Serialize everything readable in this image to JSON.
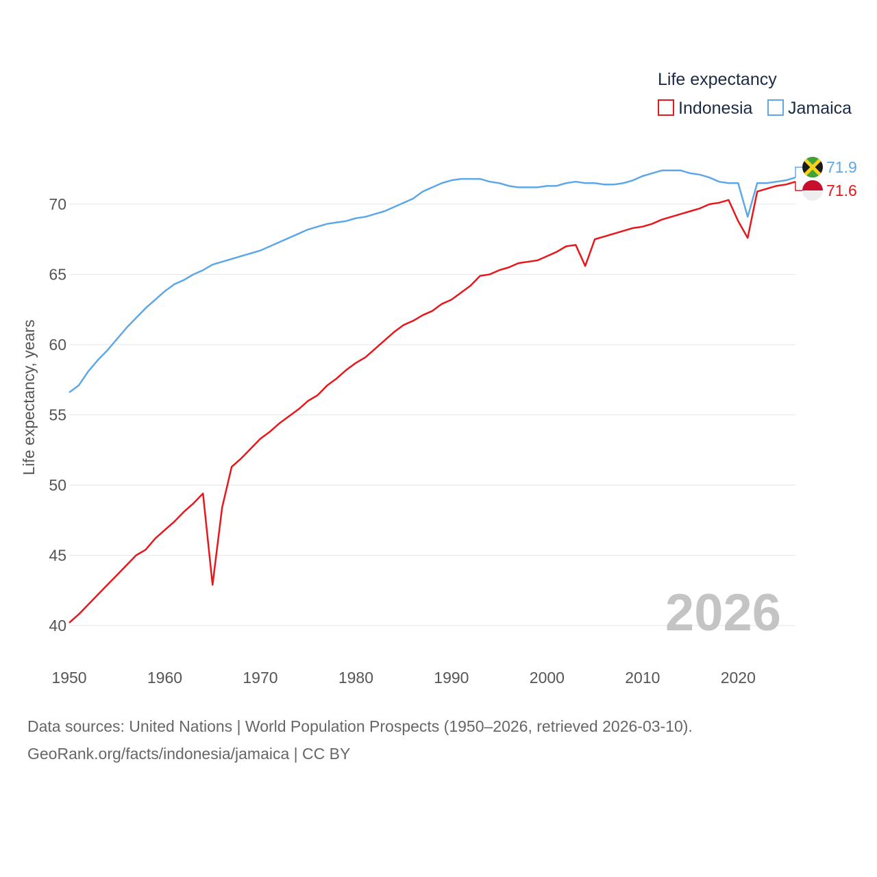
{
  "chart_data": {
    "type": "line",
    "title": "",
    "xlabel": "",
    "ylabel": "Life expectancy, years",
    "xlim": [
      1950,
      2026
    ],
    "ylim": [
      40,
      73
    ],
    "x_ticks": [
      1950,
      1960,
      1970,
      1980,
      1990,
      2000,
      2010,
      2020
    ],
    "y_ticks": [
      40,
      45,
      50,
      55,
      60,
      65,
      70
    ],
    "legend": {
      "title": "Life expectancy",
      "position": "top-right"
    },
    "current_year": "2026",
    "x": [
      1950,
      1951,
      1952,
      1953,
      1954,
      1955,
      1956,
      1957,
      1958,
      1959,
      1960,
      1961,
      1962,
      1963,
      1964,
      1965,
      1966,
      1967,
      1968,
      1969,
      1970,
      1971,
      1972,
      1973,
      1974,
      1975,
      1976,
      1977,
      1978,
      1979,
      1980,
      1981,
      1982,
      1983,
      1984,
      1985,
      1986,
      1987,
      1988,
      1989,
      1990,
      1991,
      1992,
      1993,
      1994,
      1995,
      1996,
      1997,
      1998,
      1999,
      2000,
      2001,
      2002,
      2003,
      2004,
      2005,
      2006,
      2007,
      2008,
      2009,
      2010,
      2011,
      2012,
      2013,
      2014,
      2015,
      2016,
      2017,
      2018,
      2019,
      2020,
      2021,
      2022,
      2023,
      2024,
      2025,
      2026
    ],
    "series": [
      {
        "name": "Indonesia",
        "color": "#e8161b",
        "end_label": "71.6",
        "flag": "indonesia-flag-icon",
        "values": [
          40.2,
          40.8,
          41.5,
          42.2,
          42.9,
          43.6,
          44.3,
          45.0,
          45.4,
          46.2,
          46.8,
          47.4,
          48.1,
          48.7,
          49.4,
          42.9,
          48.4,
          51.3,
          51.9,
          52.6,
          53.3,
          53.8,
          54.4,
          54.9,
          55.4,
          56.0,
          56.4,
          57.1,
          57.6,
          58.2,
          58.7,
          59.1,
          59.7,
          60.3,
          60.9,
          61.4,
          61.7,
          62.1,
          62.4,
          62.9,
          63.2,
          63.7,
          64.2,
          64.9,
          65.0,
          65.3,
          65.5,
          65.8,
          65.9,
          66.0,
          66.3,
          66.6,
          67.0,
          67.1,
          65.6,
          67.5,
          67.7,
          67.9,
          68.1,
          68.3,
          68.4,
          68.6,
          68.9,
          69.1,
          69.3,
          69.5,
          69.7,
          70.0,
          70.1,
          70.3,
          68.8,
          67.6,
          70.9,
          71.1,
          71.3,
          71.4,
          71.6
        ]
      },
      {
        "name": "Jamaica",
        "color": "#5ea7e6",
        "end_label": "71.9",
        "flag": "jamaica-flag-icon",
        "values": [
          56.6,
          57.1,
          58.1,
          58.9,
          59.6,
          60.4,
          61.2,
          61.9,
          62.6,
          63.2,
          63.8,
          64.3,
          64.6,
          65.0,
          65.3,
          65.7,
          65.9,
          66.1,
          66.3,
          66.5,
          66.7,
          67.0,
          67.3,
          67.6,
          67.9,
          68.2,
          68.4,
          68.6,
          68.7,
          68.8,
          69.0,
          69.1,
          69.3,
          69.5,
          69.8,
          70.1,
          70.4,
          70.9,
          71.2,
          71.5,
          71.7,
          71.8,
          71.8,
          71.8,
          71.6,
          71.5,
          71.3,
          71.2,
          71.2,
          71.2,
          71.3,
          71.3,
          71.5,
          71.6,
          71.5,
          71.5,
          71.4,
          71.4,
          71.5,
          71.7,
          72.0,
          72.2,
          72.4,
          72.4,
          72.4,
          72.2,
          72.1,
          71.9,
          71.6,
          71.5,
          71.5,
          69.1,
          71.5,
          71.5,
          71.6,
          71.7,
          71.9
        ]
      }
    ]
  },
  "footer": {
    "sources": "Data sources: United Nations | World Population Prospects (1950–2026, retrieved 2026-03-10).",
    "credit": "GeoRank.org/facts/indonesia/jamaica | CC BY"
  }
}
